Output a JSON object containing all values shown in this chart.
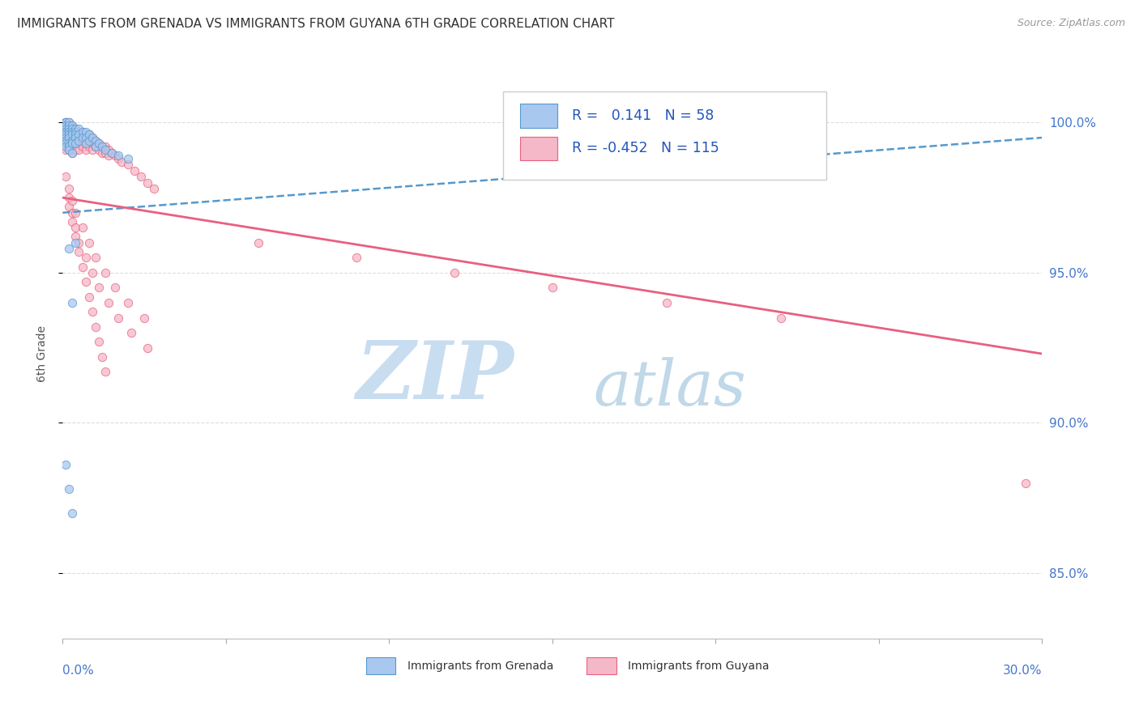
{
  "title": "IMMIGRANTS FROM GRENADA VS IMMIGRANTS FROM GUYANA 6TH GRADE CORRELATION CHART",
  "source": "Source: ZipAtlas.com",
  "ylabel": "6th Grade",
  "yaxis_labels": [
    "85.0%",
    "90.0%",
    "95.0%",
    "100.0%"
  ],
  "yaxis_values": [
    0.85,
    0.9,
    0.95,
    1.0
  ],
  "xlim": [
    0.0,
    0.3
  ],
  "ylim": [
    0.828,
    1.018
  ],
  "legend_grenada_R": "0.141",
  "legend_grenada_N": "58",
  "legend_guyana_R": "-0.452",
  "legend_guyana_N": "115",
  "color_grenada": "#a8c8f0",
  "color_guyana": "#f5b8c8",
  "color_grenada_line": "#5599cc",
  "color_guyana_line": "#e86080",
  "color_title": "#333333",
  "color_source": "#999999",
  "color_axis_labels": "#4477cc",
  "watermark_zip": "ZIP",
  "watermark_atlas": "atlas",
  "watermark_color_zip": "#c8ddf0",
  "watermark_color_atlas": "#c0d8e8",
  "grenada_trend_x0": 0.0,
  "grenada_trend_y0": 0.97,
  "grenada_trend_x1": 0.3,
  "grenada_trend_y1": 0.995,
  "guyana_trend_x0": 0.0,
  "guyana_trend_y0": 0.975,
  "guyana_trend_x1": 0.3,
  "guyana_trend_y1": 0.923,
  "grenada_x": [
    0.001,
    0.001,
    0.001,
    0.001,
    0.001,
    0.001,
    0.001,
    0.001,
    0.001,
    0.001,
    0.001,
    0.001,
    0.002,
    0.002,
    0.002,
    0.002,
    0.002,
    0.002,
    0.002,
    0.002,
    0.002,
    0.003,
    0.003,
    0.003,
    0.003,
    0.003,
    0.003,
    0.003,
    0.004,
    0.004,
    0.004,
    0.004,
    0.004,
    0.005,
    0.005,
    0.005,
    0.006,
    0.006,
    0.007,
    0.007,
    0.007,
    0.008,
    0.008,
    0.009,
    0.01,
    0.01,
    0.011,
    0.012,
    0.013,
    0.015,
    0.017,
    0.02,
    0.002,
    0.003,
    0.004,
    0.001,
    0.002,
    0.003
  ],
  "grenada_y": [
    1.0,
    1.0,
    0.999,
    0.999,
    0.998,
    0.997,
    0.997,
    0.996,
    0.995,
    0.994,
    0.993,
    0.992,
    1.0,
    0.999,
    0.998,
    0.997,
    0.996,
    0.995,
    0.993,
    0.992,
    0.991,
    0.999,
    0.998,
    0.997,
    0.996,
    0.994,
    0.993,
    0.99,
    0.998,
    0.997,
    0.996,
    0.995,
    0.993,
    0.998,
    0.996,
    0.994,
    0.997,
    0.995,
    0.997,
    0.995,
    0.993,
    0.996,
    0.994,
    0.995,
    0.994,
    0.992,
    0.993,
    0.992,
    0.991,
    0.99,
    0.989,
    0.988,
    0.958,
    0.94,
    0.96,
    0.886,
    0.878,
    0.87
  ],
  "guyana_x": [
    0.001,
    0.001,
    0.001,
    0.001,
    0.001,
    0.001,
    0.001,
    0.001,
    0.001,
    0.001,
    0.001,
    0.001,
    0.001,
    0.002,
    0.002,
    0.002,
    0.002,
    0.002,
    0.002,
    0.002,
    0.002,
    0.002,
    0.003,
    0.003,
    0.003,
    0.003,
    0.003,
    0.003,
    0.003,
    0.003,
    0.004,
    0.004,
    0.004,
    0.004,
    0.004,
    0.004,
    0.005,
    0.005,
    0.005,
    0.005,
    0.005,
    0.006,
    0.006,
    0.006,
    0.006,
    0.007,
    0.007,
    0.007,
    0.007,
    0.008,
    0.008,
    0.008,
    0.009,
    0.009,
    0.009,
    0.01,
    0.01,
    0.011,
    0.011,
    0.012,
    0.012,
    0.013,
    0.013,
    0.014,
    0.014,
    0.015,
    0.016,
    0.017,
    0.018,
    0.02,
    0.022,
    0.024,
    0.026,
    0.028,
    0.002,
    0.003,
    0.004,
    0.005,
    0.006,
    0.007,
    0.008,
    0.009,
    0.01,
    0.011,
    0.012,
    0.013,
    0.002,
    0.003,
    0.004,
    0.005,
    0.007,
    0.009,
    0.011,
    0.014,
    0.017,
    0.021,
    0.026,
    0.001,
    0.002,
    0.003,
    0.004,
    0.006,
    0.008,
    0.01,
    0.013,
    0.016,
    0.02,
    0.025,
    0.06,
    0.09,
    0.12,
    0.15,
    0.185,
    0.22,
    0.295
  ],
  "guyana_y": [
    1.0,
    1.0,
    0.999,
    0.999,
    0.998,
    0.998,
    0.997,
    0.996,
    0.995,
    0.994,
    0.993,
    0.992,
    0.991,
    1.0,
    0.999,
    0.998,
    0.997,
    0.996,
    0.995,
    0.994,
    0.993,
    0.991,
    0.999,
    0.998,
    0.997,
    0.996,
    0.995,
    0.993,
    0.992,
    0.99,
    0.998,
    0.997,
    0.996,
    0.995,
    0.993,
    0.991,
    0.997,
    0.996,
    0.995,
    0.993,
    0.991,
    0.997,
    0.996,
    0.994,
    0.992,
    0.996,
    0.995,
    0.993,
    0.991,
    0.996,
    0.994,
    0.992,
    0.995,
    0.993,
    0.991,
    0.994,
    0.992,
    0.993,
    0.991,
    0.992,
    0.99,
    0.992,
    0.99,
    0.991,
    0.989,
    0.99,
    0.989,
    0.988,
    0.987,
    0.986,
    0.984,
    0.982,
    0.98,
    0.978,
    0.972,
    0.967,
    0.962,
    0.957,
    0.952,
    0.947,
    0.942,
    0.937,
    0.932,
    0.927,
    0.922,
    0.917,
    0.975,
    0.97,
    0.965,
    0.96,
    0.955,
    0.95,
    0.945,
    0.94,
    0.935,
    0.93,
    0.925,
    0.982,
    0.978,
    0.974,
    0.97,
    0.965,
    0.96,
    0.955,
    0.95,
    0.945,
    0.94,
    0.935,
    0.96,
    0.955,
    0.95,
    0.945,
    0.94,
    0.935,
    0.88
  ]
}
